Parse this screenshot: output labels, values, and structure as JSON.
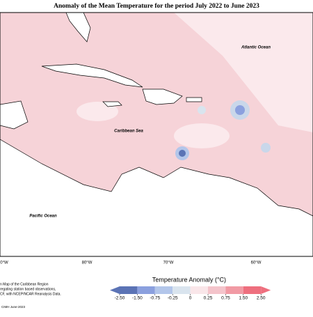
{
  "title": "Anomaly of the Mean Temperature for the period July 2022 to June 2023",
  "labels": {
    "atlantic": "Atlantic Ocean",
    "caribbean": "Caribbean Sea",
    "pacific": "Pacific Ocean"
  },
  "longitudes": [
    "0°W",
    "80°W",
    "70°W",
    "60°W"
  ],
  "legend": {
    "title": "Temperature Anomaly (°C)",
    "ticks": [
      {
        "value": -2.5,
        "label": "-2.50"
      },
      {
        "value": -1.5,
        "label": "-1.50"
      },
      -0.75,
      -0.25,
      0,
      0.25,
      0.75,
      {
        "value": 1.5,
        "label": "1.50"
      },
      {
        "value": 2.5,
        "label": "2.50"
      }
    ],
    "colors": [
      "#5b73b5",
      "#8ba0de",
      "#b3c6ea",
      "#d9e4ee",
      "#f9e6e9",
      "#f4c4cb",
      "#f19aa4",
      "#ee6f7e"
    ]
  },
  "footnote": [
    "n Map of the Caribbean Region",
    "regating station based observations,",
    "CF, with NCEP/NCAR Reanalysis Data."
  ],
  "credit": "CIMH June-2023"
}
